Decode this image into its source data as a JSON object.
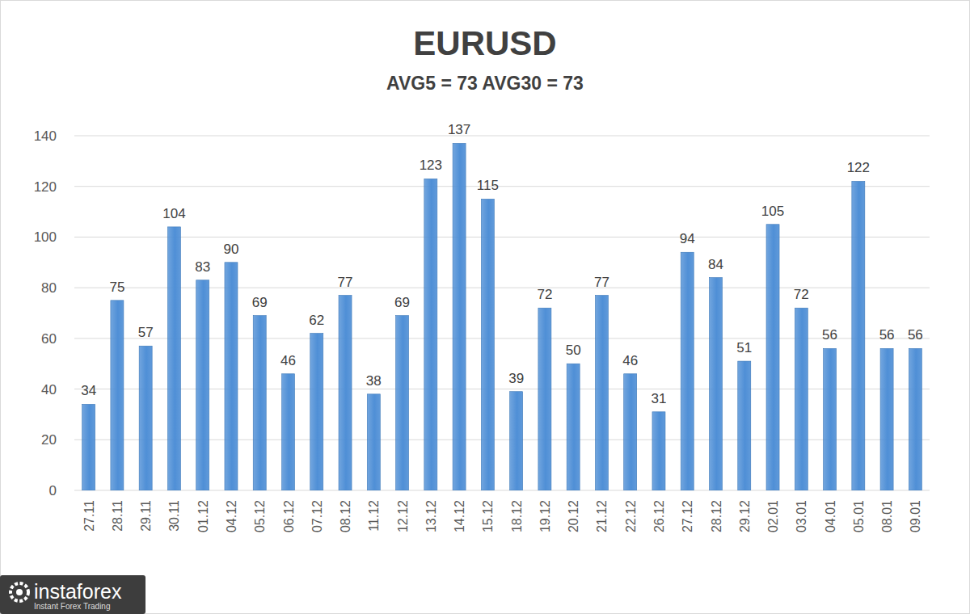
{
  "chart_data": {
    "type": "bar",
    "title": "EURUSD",
    "subtitle": "AVG5 = 73 AVG30 = 73",
    "categories": [
      "27.11",
      "28.11",
      "29.11",
      "30.11",
      "01.12",
      "04.12",
      "05.12",
      "06.12",
      "07.12",
      "08.12",
      "11.12",
      "12.12",
      "13.12",
      "14.12",
      "15.12",
      "18.12",
      "19.12",
      "20.12",
      "21.12",
      "22.12",
      "26.12",
      "27.12",
      "28.12",
      "29.12",
      "02.01",
      "03.01",
      "04.01",
      "05.01",
      "08.01",
      "09.01"
    ],
    "values": [
      34,
      75,
      57,
      104,
      83,
      90,
      69,
      46,
      62,
      77,
      38,
      69,
      123,
      137,
      115,
      39,
      72,
      50,
      77,
      46,
      31,
      94,
      84,
      51,
      105,
      72,
      56,
      122,
      56,
      56
    ],
    "color": "#4f8fd6",
    "ylim": [
      0,
      140
    ],
    "yticks": [
      0,
      20,
      40,
      60,
      80,
      100,
      120,
      140
    ],
    "grid": true,
    "data_labels": true,
    "annotations": [
      "instaforex",
      "Instant Forex Trading"
    ]
  }
}
